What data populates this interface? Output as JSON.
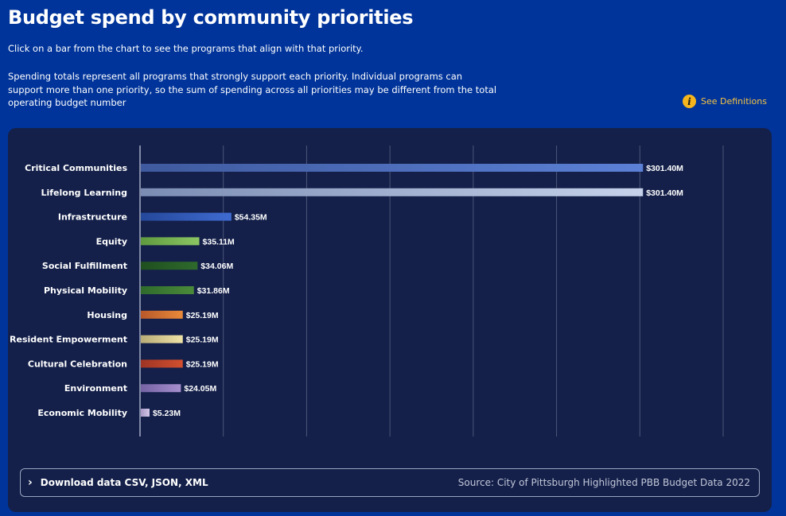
{
  "header": {
    "title": "Budget spend by community priorities",
    "intro": "Click on a bar from the chart to see the programs that align with that priority.",
    "description": "Spending totals represent all programs that strongly support each priority. Individual programs can support more than one priority, so the sum of spending across all priorities may be different from the total operating budget number",
    "definitions_label": "See Definitions",
    "definitions_icon": "info-icon"
  },
  "chart_data": {
    "type": "bar",
    "orientation": "horizontal",
    "categories": [
      "Critical Communities",
      "Lifelong Learning",
      "Infrastructure",
      "Equity",
      "Social Fulfillment",
      "Physical Mobility",
      "Housing",
      "Resident Empowerment",
      "Cultural Celebration",
      "Environment",
      "Economic Mobility"
    ],
    "values": [
      301.4,
      301.4,
      54.35,
      35.11,
      34.06,
      31.86,
      25.19,
      25.19,
      25.19,
      24.05,
      5.23
    ],
    "labels": [
      "$301.40M",
      "$301.40M",
      "$54.35M",
      "$35.11M",
      "$34.06M",
      "$31.86M",
      "$25.19M",
      "$25.19M",
      "$25.19M",
      "$24.05M",
      "$5.23M"
    ],
    "unit": "$M",
    "xlim": [
      0,
      350
    ],
    "grid": true,
    "colors": [
      [
        "#3f5a9e",
        "#5b80d6"
      ],
      [
        "#7b8db4",
        "#c6d2ea"
      ],
      [
        "#24489a",
        "#3f6bd1"
      ],
      [
        "#5f9a3f",
        "#8cc663"
      ],
      [
        "#1f4f1f",
        "#2f6a2c"
      ],
      [
        "#2f6a2c",
        "#4b8a3a"
      ],
      [
        "#b8582a",
        "#e98a3a"
      ],
      [
        "#b9ad78",
        "#efe2a6"
      ],
      [
        "#9e3424",
        "#d2502f"
      ],
      [
        "#7563a5",
        "#a58ecc"
      ],
      [
        "#a898c4",
        "#d4c7e7"
      ]
    ]
  },
  "footer": {
    "download_label": "Download data CSV, JSON, XML",
    "download_icon": "chevron-right-icon",
    "source": "Source: City of Pittsburgh Highlighted PBB Budget Data 2022"
  }
}
